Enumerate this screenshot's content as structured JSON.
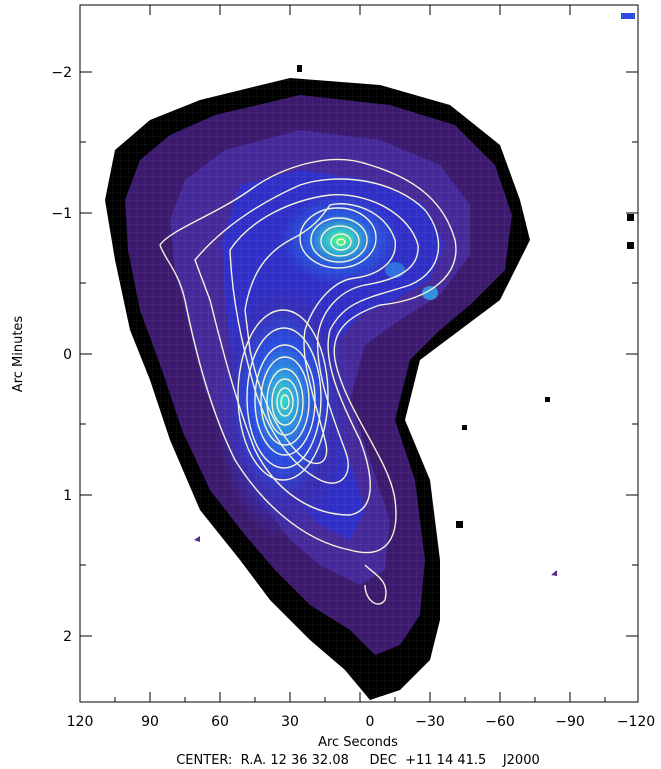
{
  "figure": {
    "xlabel": "Arc Seconds",
    "ylabel": "Arc Minutes",
    "x_ticks": [
      "120",
      "90",
      "60",
      "30",
      "0",
      "−30",
      "−60",
      "−90",
      "−120"
    ],
    "y_ticks": [
      "−2",
      "−1",
      "0",
      "1",
      "2"
    ],
    "center_label": "CENTER:  R.A. 12 36 32.08     DEC  +11 14 41.5    J2000",
    "colors": {
      "background": "#ffffff",
      "low_emission": "#3c1a6e",
      "mid_emission": "#2a3fd8",
      "high_emission": "#2fc8c0",
      "peak": "#4aff6a",
      "contour": "#f4f4dc",
      "noise_blocks": "#000000"
    }
  }
}
